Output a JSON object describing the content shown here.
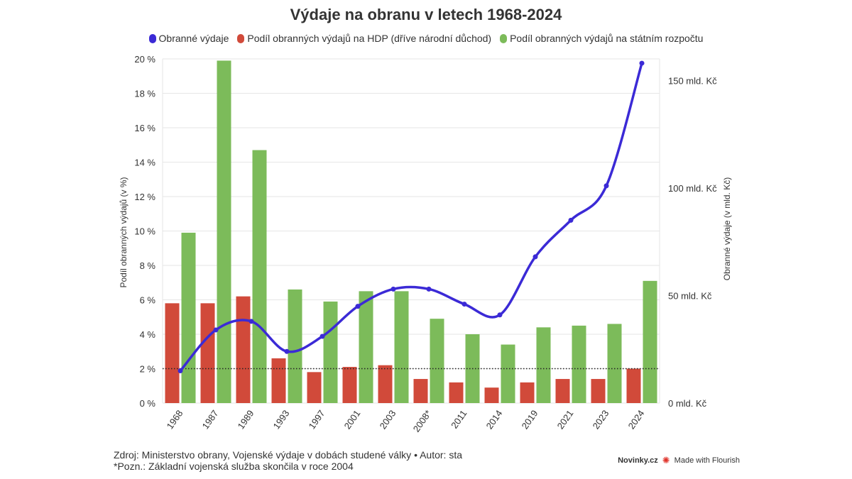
{
  "chart_data": {
    "type": "bar+line",
    "title": "Výdaje na obranu v letech 1968-2024",
    "categories": [
      "1968",
      "1987",
      "1989",
      "1993",
      "1997",
      "2001",
      "2003",
      "2008*",
      "2011",
      "2014",
      "2019",
      "2021",
      "2023",
      "2024"
    ],
    "series": [
      {
        "name": "Obranné výdaje",
        "type": "line",
        "axis": "right",
        "color": "#3b2ad6",
        "values": [
          15,
          34,
          38,
          24,
          31,
          45,
          53,
          53,
          46,
          41,
          68,
          85,
          101,
          158
        ]
      },
      {
        "name": "Podíl obranných výdajů na HDP (dříve národní důchod)",
        "type": "bar",
        "axis": "left",
        "color": "#d14a3a",
        "values": [
          5.8,
          5.8,
          6.2,
          2.6,
          1.8,
          2.1,
          2.2,
          1.4,
          1.2,
          0.9,
          1.2,
          1.4,
          1.4,
          2.0
        ]
      },
      {
        "name": "Podíl obranných výdajů na státním rozpočtu",
        "type": "bar",
        "axis": "left",
        "color": "#7cbb5a",
        "values": [
          9.9,
          19.9,
          14.7,
          6.6,
          5.9,
          6.5,
          6.5,
          4.9,
          4.0,
          3.4,
          4.4,
          4.5,
          4.6,
          7.1
        ]
      }
    ],
    "y_left": {
      "label": "Podíl obranných výdajů (v %)",
      "min": 0,
      "max": 20,
      "ticks": [
        "0 %",
        "2 %",
        "4 %",
        "6 %",
        "8 %",
        "10 %",
        "12 %",
        "14 %",
        "16 %",
        "18 %",
        "20 %"
      ]
    },
    "y_right": {
      "label": "Obranné výdaje (v mld. Kč)",
      "min": 0,
      "max": 160,
      "ticks": [
        {
          "value": 0,
          "label": "0 mld. Kč"
        },
        {
          "value": 50,
          "label": "50 mld. Kč"
        },
        {
          "value": 100,
          "label": "100 mld. Kč"
        },
        {
          "value": 150,
          "label": "150 mld. Kč"
        }
      ]
    },
    "reference_line": {
      "axis": "left",
      "value": 2,
      "style": "dotted"
    },
    "grid": true,
    "legend_position": "top"
  },
  "footer": {
    "source": "Zdroj: Ministerstvo obrany, Vojenské výdaje v dobách studené války • Autor: sta",
    "note": "*Pozn.: Základní vojenská služba skončila v roce 2004"
  },
  "brand": {
    "publisher": "Novinky.cz",
    "made_with": "Made with Flourish"
  }
}
